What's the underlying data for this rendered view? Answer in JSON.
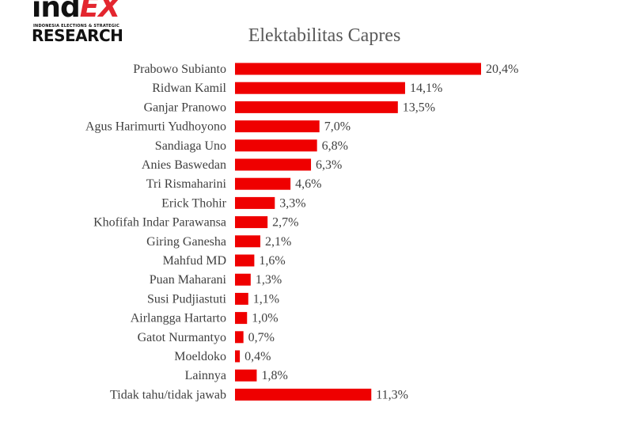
{
  "logo": {
    "brand_ind": "ind",
    "brand_ex": "EX",
    "tagline": "INDONESIA ELECTIONS & STRATEGIC",
    "research": "RESEARCH"
  },
  "colors": {
    "bar": "#ef0000",
    "brand_red": "#e3262f",
    "text": "#404040"
  },
  "chart_data": {
    "type": "bar",
    "orientation": "horizontal",
    "title": "Elektabilitas Capres",
    "xlabel": "",
    "ylabel": "",
    "grid": false,
    "legend": "none",
    "xlim": [
      0,
      20.4
    ],
    "categories": [
      "Prabowo Subianto",
      "Ridwan Kamil",
      "Ganjar Pranowo",
      "Agus Harimurti Yudhoyono",
      "Sandiaga Uno",
      "Anies Baswedan",
      "Tri Rismaharini",
      "Erick Thohir",
      "Khofifah Indar Parawansa",
      "Giring Ganesha",
      "Mahfud MD",
      "Puan Maharani",
      "Susi Pudjiastuti",
      "Airlangga Hartarto",
      "Gatot Nurmantyo",
      "Moeldoko",
      "Lainnya",
      "Tidak tahu/tidak jawab"
    ],
    "values": [
      20.4,
      14.1,
      13.5,
      7.0,
      6.8,
      6.3,
      4.6,
      3.3,
      2.7,
      2.1,
      1.6,
      1.3,
      1.1,
      1.0,
      0.7,
      0.4,
      1.8,
      11.3
    ],
    "value_labels": [
      "20,4%",
      "14,1%",
      "13,5%",
      "7,0%",
      "6,8%",
      "6,3%",
      "4,6%",
      "3,3%",
      "2,7%",
      "2,1%",
      "1,6%",
      "1,3%",
      "1,1%",
      "1,0%",
      "0,7%",
      "0,4%",
      "1,8%",
      "11,3%"
    ]
  }
}
